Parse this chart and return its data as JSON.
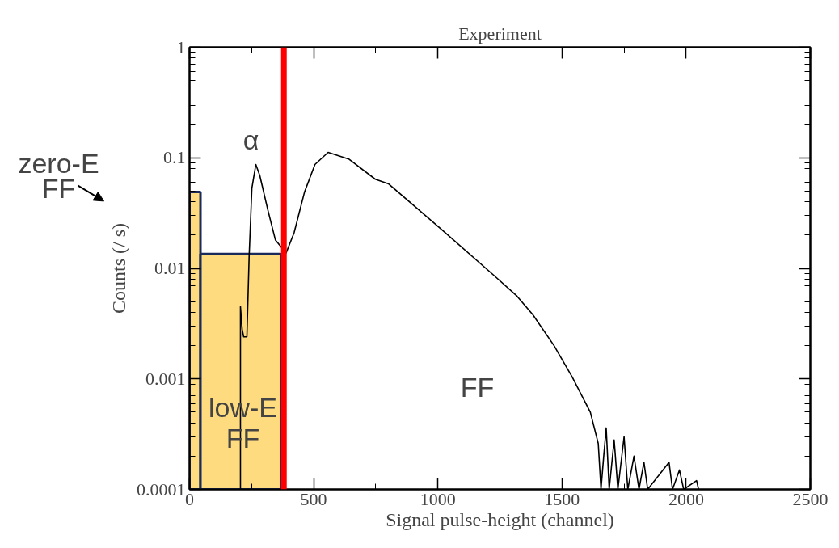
{
  "chart_data": {
    "type": "line",
    "title": "Experiment",
    "xlabel": "Signal pulse-height (channel)",
    "ylabel": "Counts (/ s)",
    "series": [
      {
        "type": "histogram",
        "color": "#ffdb80",
        "bins": [
          0,
          44,
          368
        ],
        "values": [
          0.049,
          0.0135
        ]
      },
      {
        "color": "#000000",
        "x": [
          205,
          205,
          212,
          218,
          231,
          240,
          251,
          267,
          283,
          315,
          346,
          389,
          421,
          463,
          505,
          558,
          643,
          748,
          802,
          1012,
          1224,
          1319,
          1383,
          1468,
          1541,
          1614,
          1646,
          1657,
          1668,
          1678,
          1690,
          1710,
          1725,
          1750,
          1765,
          1790,
          1810,
          1830,
          1845,
          1931,
          1945,
          1973,
          1990,
          2042,
          2050
        ],
        "values": [
          0.0001,
          0.0045,
          0.0028,
          0.0024,
          0.0024,
          0.0129,
          0.053,
          0.087,
          0.069,
          0.034,
          0.018,
          0.0138,
          0.021,
          0.049,
          0.087,
          0.112,
          0.097,
          0.064,
          0.058,
          0.0228,
          0.0087,
          0.0056,
          0.0038,
          0.002,
          0.00104,
          0.0005,
          0.00026,
          0.0001,
          0.0002,
          0.00036,
          0.0001,
          0.00028,
          0.0001,
          0.0003,
          0.0001,
          0.0002,
          0.0001,
          0.000176,
          0.0001,
          0.000176,
          0.0001,
          0.00015,
          0.0001,
          0.00012,
          0.0001
        ]
      }
    ],
    "ref_lines": [
      {
        "axis": "x",
        "value": 380,
        "color": "#ff0000"
      }
    ],
    "annotations": [
      "zero-E\nFF",
      "α",
      "low-E\nFF",
      "FF"
    ],
    "xlim": [
      0,
      2500
    ],
    "xticks": [
      0,
      500,
      1000,
      1500,
      2000,
      2500
    ],
    "ylim": [
      0.0001,
      1
    ],
    "yticks": [
      0.0001,
      0.001,
      0.01,
      0.1,
      1
    ],
    "log": "y",
    "grid": false
  }
}
